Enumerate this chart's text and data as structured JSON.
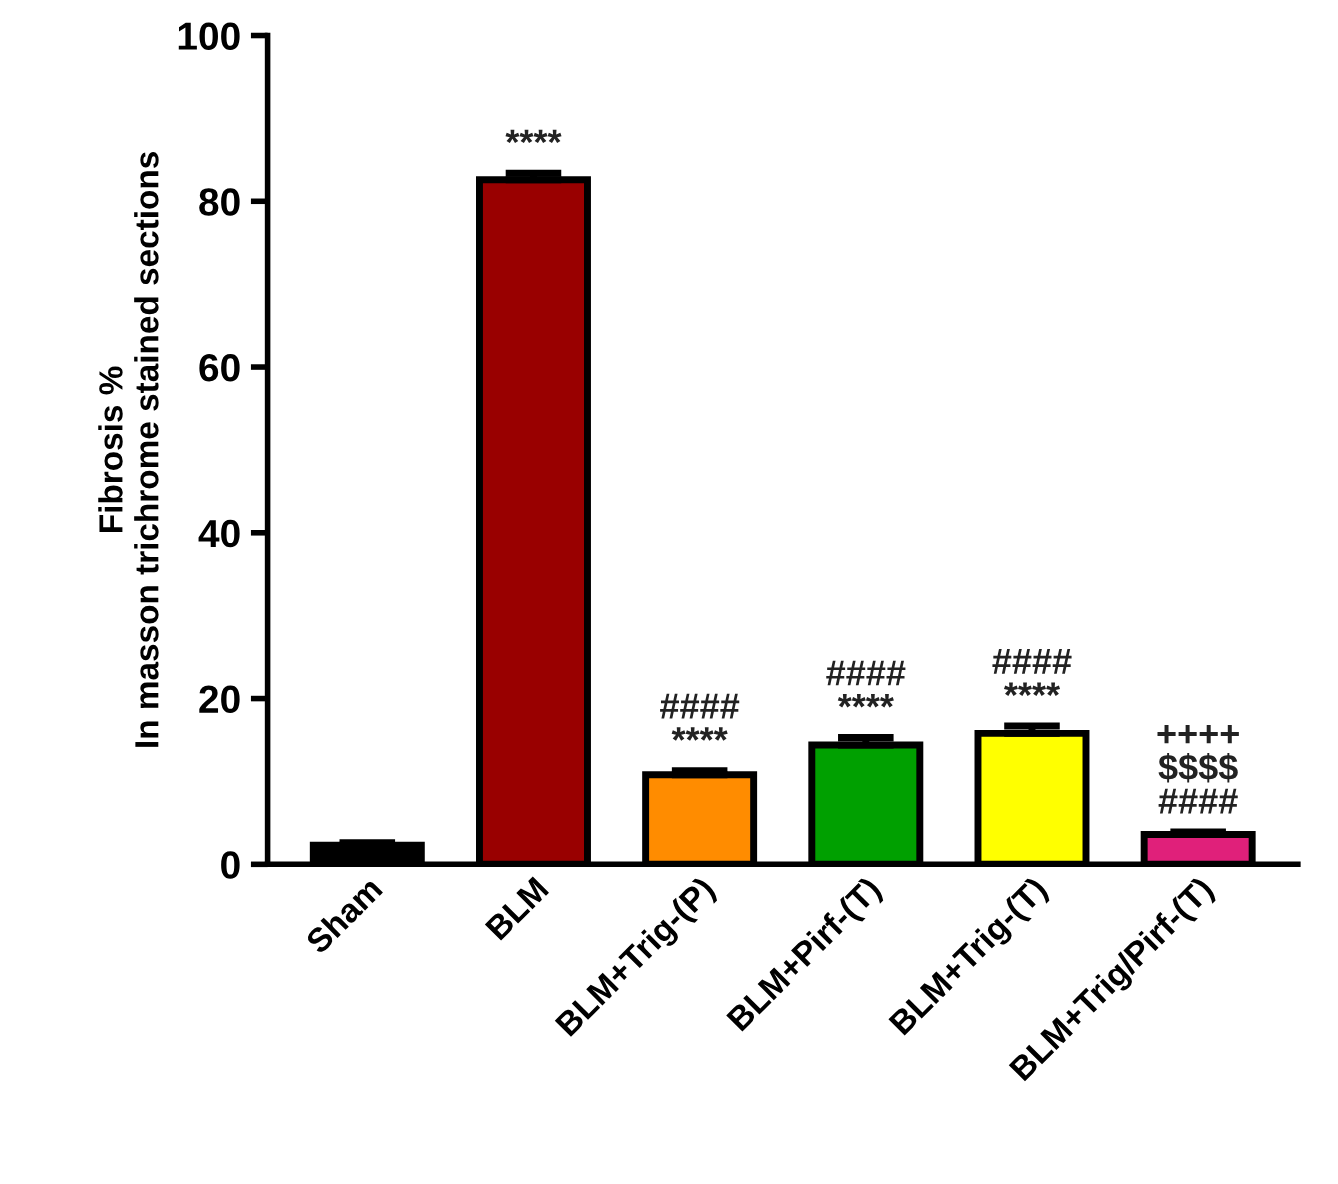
{
  "chart_data": {
    "type": "bar",
    "ylabel": "Fibrosis %\nIn masson trichrome stained sections",
    "categories": [
      "Sham",
      "BLM",
      "BLM+Trig-(P)",
      "BLM+Pirf-(T)",
      "BLM+Trig-(T)",
      "BLM+Trig/Pirf-(T)"
    ],
    "values": [
      2.3,
      82.6,
      10.8,
      14.4,
      15.8,
      3.6
    ],
    "errors": [
      0.3,
      0.8,
      0.5,
      0.9,
      0.9,
      0.3
    ],
    "colors": [
      "#000000",
      "#990000",
      "#ff8c00",
      "#00a000",
      "#ffff00",
      "#e0207a"
    ],
    "ylim": [
      0,
      100
    ],
    "yticks": [
      0,
      20,
      40,
      60,
      80,
      100
    ],
    "grid": false,
    "value_labels": [
      null,
      "****",
      "####\n****",
      "####\n****",
      "####\n****",
      "++++\n$$$$\n####"
    ]
  }
}
